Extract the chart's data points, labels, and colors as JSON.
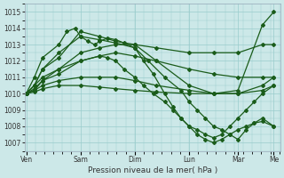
{
  "bg_color": "#cce8e8",
  "grid_color": "#99cccc",
  "line_color": "#1a5c1a",
  "markersize": 2.0,
  "linewidth": 0.9,
  "ylabel_ticks": [
    1007,
    1008,
    1009,
    1010,
    1011,
    1012,
    1013,
    1014,
    1015
  ],
  "ylim": [
    1006.5,
    1015.5
  ],
  "xlabel": "Pression niveau de la mer( hPa )",
  "xlabel_fontsize": 6.5,
  "tick_fontsize": 5.5,
  "day_labels": [
    "Ven",
    "Sam",
    "Dim",
    "Lun",
    "Mar",
    "Me"
  ],
  "day_positions": [
    0,
    0.333,
    0.667,
    1.0,
    1.3,
    1.52
  ],
  "series": [
    {
      "name": "s1_high_peak_rises_to_1015",
      "x": [
        0,
        0.05,
        0.1,
        0.2,
        0.333,
        0.45,
        0.55,
        0.667,
        0.8,
        1.0,
        1.15,
        1.3,
        1.45,
        1.52
      ],
      "y": [
        1010,
        1010.5,
        1011.5,
        1012.2,
        1013.8,
        1013.5,
        1013.2,
        1013.0,
        1012.0,
        1010.5,
        1010.0,
        1010.2,
        1014.2,
        1015.0
      ]
    },
    {
      "name": "s2_moderate_peak_flat_then_rises_1013",
      "x": [
        0,
        0.05,
        0.1,
        0.2,
        0.333,
        0.45,
        0.55,
        0.667,
        0.8,
        1.0,
        1.15,
        1.3,
        1.45,
        1.52
      ],
      "y": [
        1010,
        1010.2,
        1010.8,
        1011.5,
        1012.5,
        1012.8,
        1013.0,
        1013.0,
        1012.8,
        1012.5,
        1012.5,
        1012.5,
        1013.0,
        1013.0
      ]
    },
    {
      "name": "s3_peak_1012_slow_decline",
      "x": [
        0,
        0.05,
        0.1,
        0.2,
        0.333,
        0.45,
        0.55,
        0.667,
        0.8,
        1.0,
        1.15,
        1.3,
        1.45,
        1.52
      ],
      "y": [
        1010,
        1010.3,
        1010.8,
        1011.2,
        1012.0,
        1012.3,
        1012.5,
        1012.3,
        1012.0,
        1011.5,
        1011.2,
        1011.0,
        1011.0,
        1011.0
      ]
    },
    {
      "name": "s4_peak_1011_flat",
      "x": [
        0,
        0.05,
        0.1,
        0.2,
        0.333,
        0.45,
        0.55,
        0.667,
        0.8,
        1.0,
        1.15,
        1.3,
        1.45,
        1.52
      ],
      "y": [
        1010,
        1010.2,
        1010.5,
        1010.8,
        1011.0,
        1011.0,
        1011.0,
        1010.8,
        1010.5,
        1010.2,
        1010.0,
        1010.0,
        1010.5,
        1011.0
      ]
    },
    {
      "name": "s5_low_flat",
      "x": [
        0,
        0.05,
        0.1,
        0.2,
        0.333,
        0.45,
        0.55,
        0.667,
        0.8,
        1.0,
        1.15,
        1.3,
        1.45,
        1.52
      ],
      "y": [
        1010,
        1010.1,
        1010.3,
        1010.5,
        1010.5,
        1010.4,
        1010.3,
        1010.2,
        1010.1,
        1010.0,
        1010.0,
        1010.0,
        1010.2,
        1010.5
      ]
    },
    {
      "name": "s6_peak_1013_dips_low_rises_1011",
      "x": [
        0,
        0.05,
        0.1,
        0.2,
        0.333,
        0.45,
        0.55,
        0.667,
        0.75,
        0.85,
        0.95,
        1.0,
        1.05,
        1.1,
        1.15,
        1.2,
        1.25,
        1.3,
        1.35,
        1.4,
        1.45,
        1.52
      ],
      "y": [
        1010,
        1010.5,
        1011.5,
        1012.5,
        1013.5,
        1013.3,
        1013.1,
        1012.8,
        1012.0,
        1011.0,
        1010.2,
        1009.5,
        1009.0,
        1008.5,
        1008.0,
        1007.8,
        1007.5,
        1007.2,
        1007.8,
        1008.2,
        1008.5,
        1008.0
      ]
    },
    {
      "name": "s7_peak_1014_dips_1007_rises_1008",
      "x": [
        0,
        0.05,
        0.1,
        0.2,
        0.25,
        0.3,
        0.333,
        0.38,
        0.42,
        0.45,
        0.5,
        0.55,
        0.6,
        0.667,
        0.72,
        0.78,
        0.85,
        0.9,
        0.95,
        1.0,
        1.05,
        1.1,
        1.15,
        1.2,
        1.25,
        1.3,
        1.35,
        1.4,
        1.45,
        1.52
      ],
      "y": [
        1010,
        1011.0,
        1012.2,
        1013.0,
        1013.8,
        1014.0,
        1013.5,
        1013.2,
        1013.0,
        1013.2,
        1013.4,
        1013.3,
        1013.1,
        1012.8,
        1012.0,
        1011.2,
        1010.0,
        1009.2,
        1008.5,
        1008.0,
        1007.5,
        1007.2,
        1007.0,
        1007.2,
        1007.5,
        1007.8,
        1008.0,
        1008.2,
        1008.3,
        1008.0
      ]
    },
    {
      "name": "s8_dip_deep_1007_rises_1008",
      "x": [
        0,
        0.05,
        0.1,
        0.2,
        0.333,
        0.45,
        0.5,
        0.55,
        0.6,
        0.667,
        0.72,
        0.78,
        0.85,
        0.9,
        0.95,
        1.0,
        1.05,
        1.1,
        1.15,
        1.2,
        1.25,
        1.3,
        1.35,
        1.4,
        1.45,
        1.52
      ],
      "y": [
        1010,
        1010.5,
        1011.0,
        1011.5,
        1012.0,
        1012.3,
        1012.2,
        1012.0,
        1011.5,
        1011.0,
        1010.5,
        1010.0,
        1009.5,
        1009.0,
        1008.5,
        1008.0,
        1007.8,
        1007.5,
        1007.3,
        1007.5,
        1008.0,
        1008.5,
        1009.0,
        1009.5,
        1010.0,
        1010.5
      ]
    }
  ]
}
